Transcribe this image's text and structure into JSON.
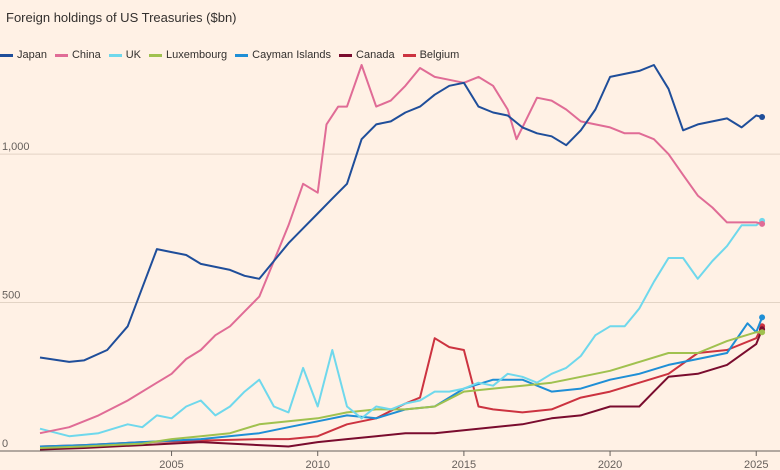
{
  "chart_data": {
    "type": "line",
    "title": "Foreign holdings of US Treasuries ($bn)",
    "xlabel": "",
    "ylabel": "",
    "xlim": [
      2000.5,
      2025.3
    ],
    "ylim": [
      0,
      1300
    ],
    "y_ticks": [
      {
        "value": 0,
        "label": "0"
      },
      {
        "value": 500,
        "label": "500"
      },
      {
        "value": 1000,
        "label": "1,000"
      }
    ],
    "x_ticks": [
      {
        "value": 2005,
        "label": "2005"
      },
      {
        "value": 2010,
        "label": "2010"
      },
      {
        "value": 2015,
        "label": "2015"
      },
      {
        "value": 2020,
        "label": "2020"
      },
      {
        "value": 2025,
        "label": "2025"
      }
    ],
    "grid": true,
    "legend_position": "top-left",
    "series": [
      {
        "name": "Japan",
        "color": "#1f4e9a",
        "points": [
          [
            2000.5,
            315
          ],
          [
            2001.5,
            300
          ],
          [
            2002,
            305
          ],
          [
            2002.8,
            340
          ],
          [
            2003.5,
            420
          ],
          [
            2004,
            550
          ],
          [
            2004.5,
            680
          ],
          [
            2005,
            670
          ],
          [
            2005.5,
            660
          ],
          [
            2006,
            630
          ],
          [
            2006.5,
            620
          ],
          [
            2007,
            610
          ],
          [
            2007.5,
            590
          ],
          [
            2008,
            580
          ],
          [
            2008.5,
            640
          ],
          [
            2009,
            700
          ],
          [
            2009.5,
            750
          ],
          [
            2010,
            800
          ],
          [
            2010.5,
            850
          ],
          [
            2011,
            900
          ],
          [
            2011.5,
            1050
          ],
          [
            2012,
            1100
          ],
          [
            2012.5,
            1110
          ],
          [
            2013,
            1140
          ],
          [
            2013.5,
            1160
          ],
          [
            2014,
            1200
          ],
          [
            2014.5,
            1230
          ],
          [
            2015,
            1240
          ],
          [
            2015.5,
            1160
          ],
          [
            2016,
            1140
          ],
          [
            2016.5,
            1130
          ],
          [
            2017,
            1090
          ],
          [
            2017.5,
            1070
          ],
          [
            2018,
            1060
          ],
          [
            2018.5,
            1030
          ],
          [
            2019,
            1080
          ],
          [
            2019.5,
            1150
          ],
          [
            2020,
            1260
          ],
          [
            2020.5,
            1270
          ],
          [
            2021,
            1280
          ],
          [
            2021.5,
            1300
          ],
          [
            2022,
            1220
          ],
          [
            2022.5,
            1080
          ],
          [
            2023,
            1100
          ],
          [
            2023.5,
            1110
          ],
          [
            2024,
            1120
          ],
          [
            2024.5,
            1090
          ],
          [
            2025,
            1130
          ],
          [
            2025.2,
            1125
          ]
        ]
      },
      {
        "name": "China",
        "color": "#e06c96",
        "points": [
          [
            2000.5,
            60
          ],
          [
            2001.5,
            80
          ],
          [
            2002.5,
            120
          ],
          [
            2003.5,
            170
          ],
          [
            2004.5,
            230
          ],
          [
            2005,
            260
          ],
          [
            2005.5,
            310
          ],
          [
            2006,
            340
          ],
          [
            2006.5,
            390
          ],
          [
            2007,
            420
          ],
          [
            2007.5,
            470
          ],
          [
            2008,
            520
          ],
          [
            2008.5,
            640
          ],
          [
            2009,
            760
          ],
          [
            2009.5,
            900
          ],
          [
            2010,
            870
          ],
          [
            2010.3,
            1100
          ],
          [
            2010.7,
            1160
          ],
          [
            2011,
            1160
          ],
          [
            2011.5,
            1300
          ],
          [
            2012,
            1160
          ],
          [
            2012.5,
            1180
          ],
          [
            2013,
            1230
          ],
          [
            2013.5,
            1290
          ],
          [
            2014,
            1260
          ],
          [
            2014.5,
            1250
          ],
          [
            2015,
            1240
          ],
          [
            2015.5,
            1260
          ],
          [
            2016,
            1230
          ],
          [
            2016.5,
            1150
          ],
          [
            2016.8,
            1050
          ],
          [
            2017,
            1090
          ],
          [
            2017.5,
            1190
          ],
          [
            2018,
            1180
          ],
          [
            2018.5,
            1150
          ],
          [
            2019,
            1110
          ],
          [
            2019.5,
            1100
          ],
          [
            2020,
            1090
          ],
          [
            2020.5,
            1070
          ],
          [
            2021,
            1070
          ],
          [
            2021.5,
            1050
          ],
          [
            2022,
            1000
          ],
          [
            2022.5,
            930
          ],
          [
            2023,
            860
          ],
          [
            2023.5,
            820
          ],
          [
            2024,
            770
          ],
          [
            2024.5,
            770
          ],
          [
            2025,
            770
          ],
          [
            2025.2,
            765
          ]
        ]
      },
      {
        "name": "UK",
        "color": "#6fd8ec",
        "points": [
          [
            2000.5,
            75
          ],
          [
            2001.5,
            50
          ],
          [
            2002.5,
            60
          ],
          [
            2003.5,
            90
          ],
          [
            2004,
            80
          ],
          [
            2004.5,
            120
          ],
          [
            2005,
            110
          ],
          [
            2005.5,
            150
          ],
          [
            2006,
            170
          ],
          [
            2006.5,
            120
          ],
          [
            2007,
            150
          ],
          [
            2007.5,
            200
          ],
          [
            2008,
            240
          ],
          [
            2008.5,
            150
          ],
          [
            2009,
            130
          ],
          [
            2009.5,
            280
          ],
          [
            2010,
            150
          ],
          [
            2010.5,
            340
          ],
          [
            2011,
            150
          ],
          [
            2011.5,
            110
          ],
          [
            2012,
            150
          ],
          [
            2012.5,
            140
          ],
          [
            2013,
            160
          ],
          [
            2013.5,
            170
          ],
          [
            2014,
            200
          ],
          [
            2014.5,
            200
          ],
          [
            2015,
            210
          ],
          [
            2015.5,
            230
          ],
          [
            2016,
            220
          ],
          [
            2016.5,
            260
          ],
          [
            2017,
            250
          ],
          [
            2017.5,
            230
          ],
          [
            2018,
            260
          ],
          [
            2018.5,
            280
          ],
          [
            2019,
            320
          ],
          [
            2019.5,
            390
          ],
          [
            2020,
            420
          ],
          [
            2020.5,
            420
          ],
          [
            2021,
            480
          ],
          [
            2021.5,
            570
          ],
          [
            2022,
            650
          ],
          [
            2022.5,
            650
          ],
          [
            2023,
            580
          ],
          [
            2023.5,
            640
          ],
          [
            2024,
            690
          ],
          [
            2024.5,
            760
          ],
          [
            2025,
            760
          ],
          [
            2025.2,
            775
          ]
        ]
      },
      {
        "name": "Luxembourg",
        "color": "#a0c14f",
        "points": [
          [
            2000.5,
            10
          ],
          [
            2002,
            15
          ],
          [
            2004,
            25
          ],
          [
            2005,
            40
          ],
          [
            2006,
            50
          ],
          [
            2007,
            60
          ],
          [
            2008,
            90
          ],
          [
            2009,
            100
          ],
          [
            2010,
            110
          ],
          [
            2011,
            130
          ],
          [
            2012,
            140
          ],
          [
            2013,
            140
          ],
          [
            2014,
            150
          ],
          [
            2015,
            200
          ],
          [
            2016,
            210
          ],
          [
            2017,
            220
          ],
          [
            2018,
            230
          ],
          [
            2019,
            250
          ],
          [
            2020,
            270
          ],
          [
            2021,
            300
          ],
          [
            2022,
            330
          ],
          [
            2023,
            330
          ],
          [
            2024,
            370
          ],
          [
            2025,
            400
          ],
          [
            2025.2,
            400
          ]
        ]
      },
      {
        "name": "Cayman Islands",
        "color": "#1f8fd6",
        "points": [
          [
            2000.5,
            15
          ],
          [
            2002,
            20
          ],
          [
            2004,
            30
          ],
          [
            2006,
            40
          ],
          [
            2008,
            60
          ],
          [
            2009,
            80
          ],
          [
            2010,
            100
          ],
          [
            2011,
            120
          ],
          [
            2012,
            110
          ],
          [
            2013,
            140
          ],
          [
            2014,
            150
          ],
          [
            2015,
            210
          ],
          [
            2016,
            240
          ],
          [
            2017,
            240
          ],
          [
            2018,
            200
          ],
          [
            2019,
            210
          ],
          [
            2020,
            240
          ],
          [
            2021,
            260
          ],
          [
            2022,
            290
          ],
          [
            2023,
            310
          ],
          [
            2024,
            330
          ],
          [
            2024.7,
            430
          ],
          [
            2025,
            400
          ],
          [
            2025.2,
            450
          ]
        ]
      },
      {
        "name": "Canada",
        "color": "#7a0c2e",
        "points": [
          [
            2000.5,
            5
          ],
          [
            2002,
            10
          ],
          [
            2004,
            20
          ],
          [
            2006,
            30
          ],
          [
            2008,
            20
          ],
          [
            2009,
            15
          ],
          [
            2010,
            30
          ],
          [
            2011,
            40
          ],
          [
            2012,
            50
          ],
          [
            2013,
            60
          ],
          [
            2014,
            60
          ],
          [
            2015,
            70
          ],
          [
            2016,
            80
          ],
          [
            2017,
            90
          ],
          [
            2018,
            110
          ],
          [
            2019,
            120
          ],
          [
            2020,
            150
          ],
          [
            2021,
            150
          ],
          [
            2021.5,
            200
          ],
          [
            2022,
            250
          ],
          [
            2023,
            260
          ],
          [
            2024,
            290
          ],
          [
            2025,
            360
          ],
          [
            2025.2,
            410
          ]
        ]
      },
      {
        "name": "Belgium",
        "color": "#cc3340",
        "points": [
          [
            2000.5,
            15
          ],
          [
            2002,
            20
          ],
          [
            2004,
            30
          ],
          [
            2006,
            35
          ],
          [
            2008,
            40
          ],
          [
            2009,
            40
          ],
          [
            2010,
            50
          ],
          [
            2011,
            90
          ],
          [
            2012,
            110
          ],
          [
            2013,
            160
          ],
          [
            2013.5,
            180
          ],
          [
            2014,
            380
          ],
          [
            2014.5,
            350
          ],
          [
            2015,
            340
          ],
          [
            2015.5,
            150
          ],
          [
            2016,
            140
          ],
          [
            2017,
            130
          ],
          [
            2018,
            140
          ],
          [
            2019,
            180
          ],
          [
            2020,
            200
          ],
          [
            2021,
            230
          ],
          [
            2022,
            260
          ],
          [
            2023,
            330
          ],
          [
            2024,
            340
          ],
          [
            2025,
            380
          ],
          [
            2025.2,
            420
          ]
        ]
      }
    ]
  }
}
